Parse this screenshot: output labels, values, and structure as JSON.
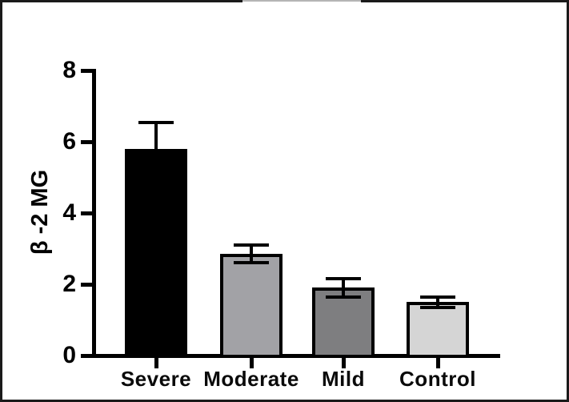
{
  "chart_data": {
    "type": "bar",
    "title": "",
    "categories": [
      "Severe",
      "Moderate",
      "Mild",
      "Control"
    ],
    "values": [
      5.8,
      2.85,
      1.9,
      1.5
    ],
    "errors": [
      0.75,
      0.25,
      0.25,
      0.15
    ],
    "bar_colors": [
      "#000000",
      "#a2a2a6",
      "#7e7e80",
      "#d5d5d5"
    ],
    "bar_border_color": "#000000",
    "error_bar_style": "caps-above-and-below-mean",
    "xlabel": "",
    "ylabel": "β -2 MG",
    "ylim": [
      0,
      8
    ],
    "yticks": [
      0,
      2,
      4,
      6,
      8
    ],
    "grid": false,
    "legend": null
  }
}
